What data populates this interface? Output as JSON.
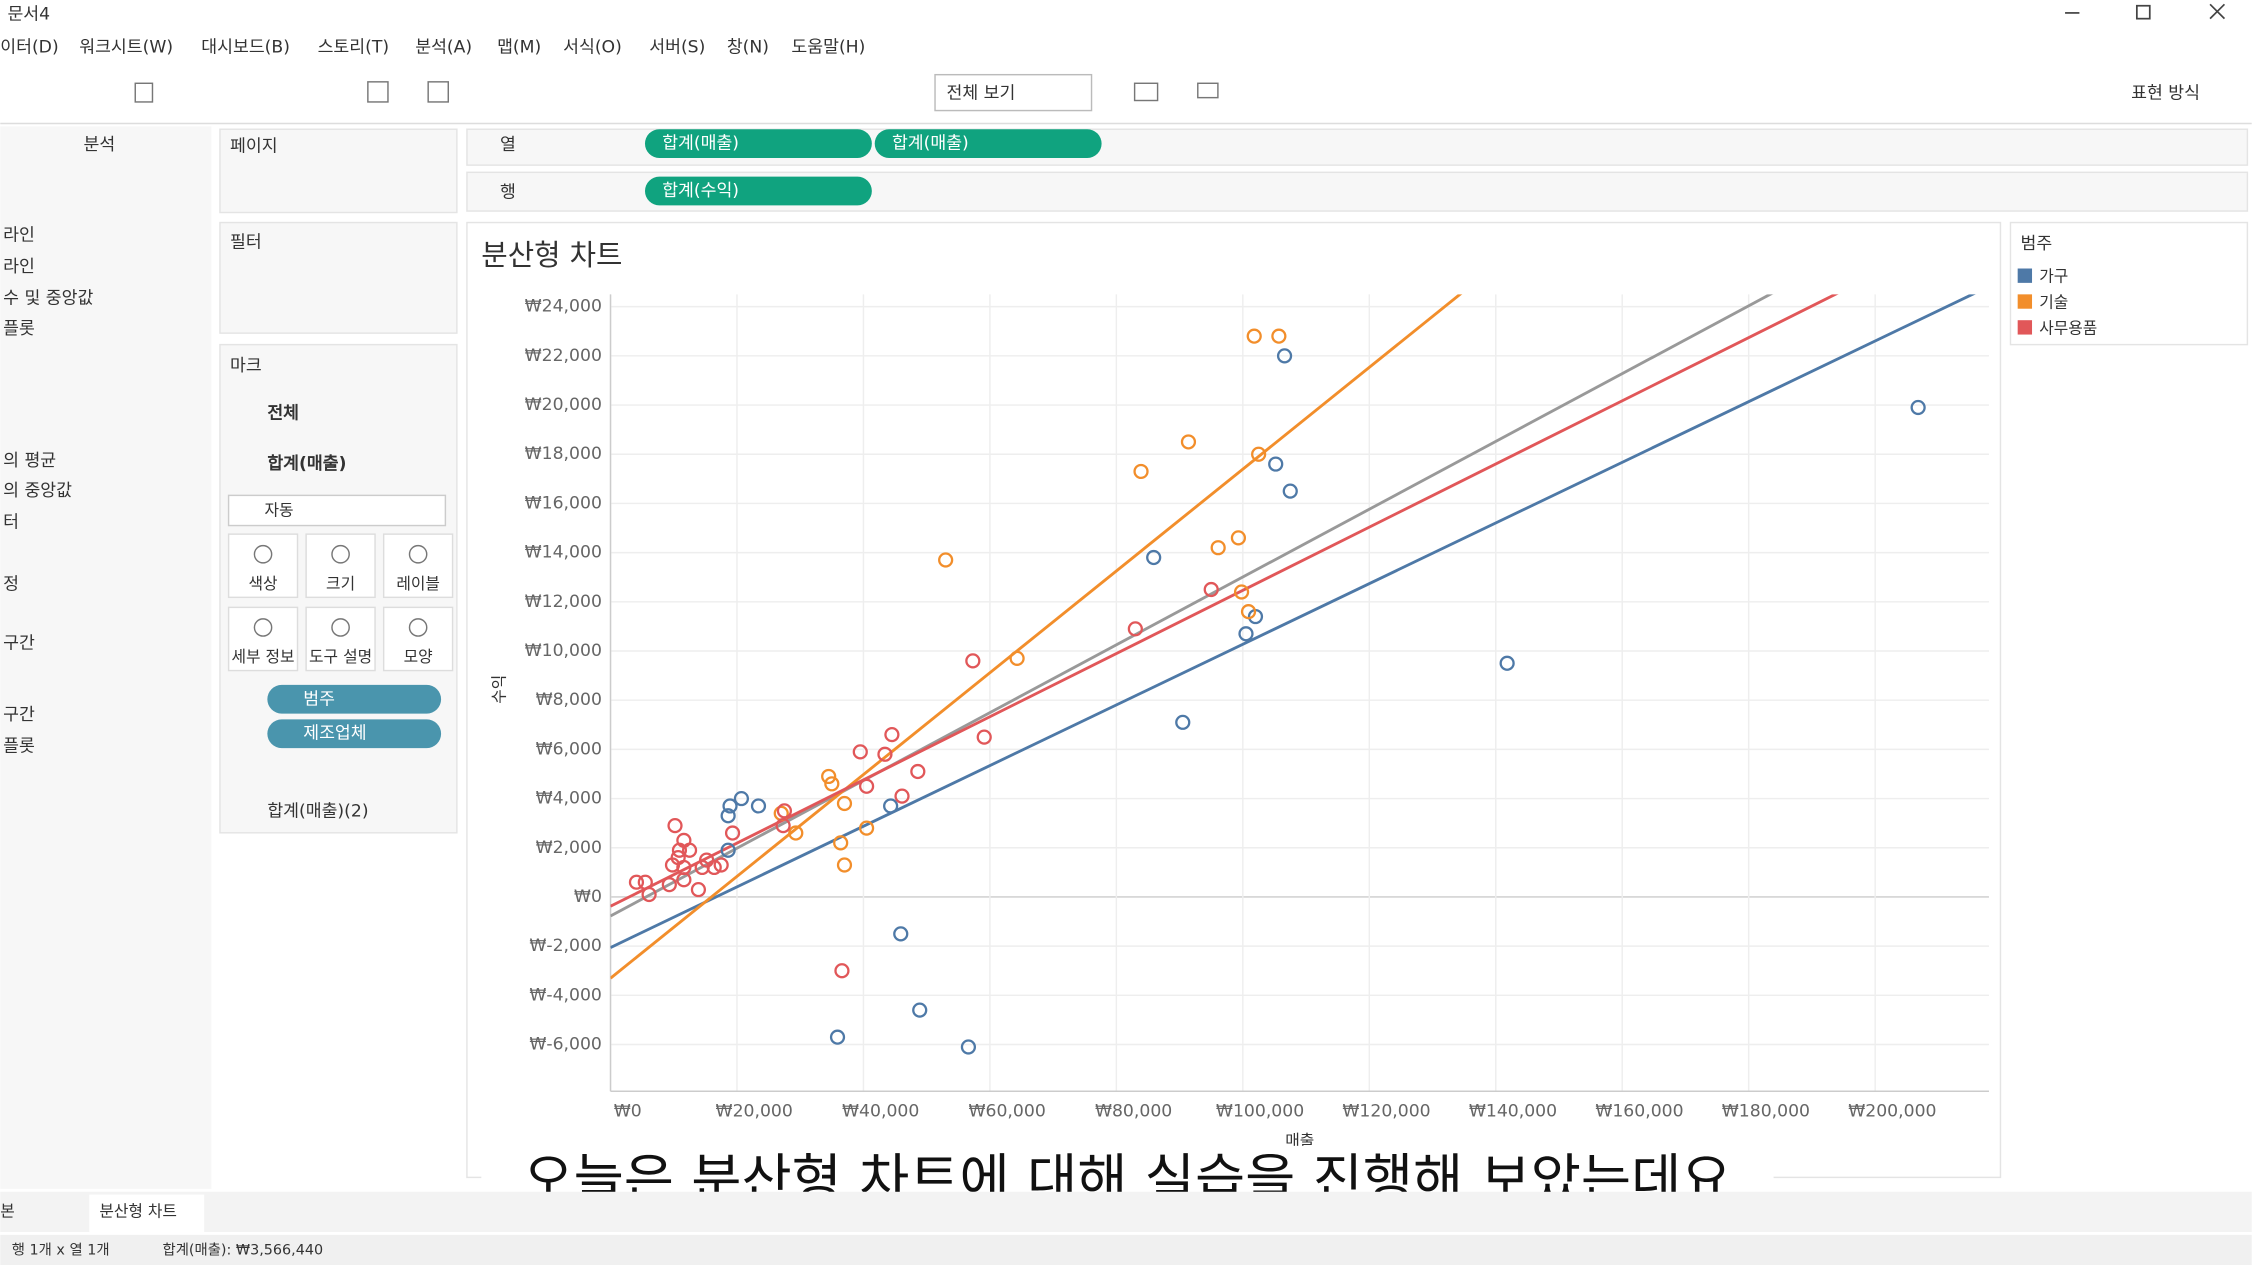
{
  "window": {
    "title": "문서4"
  },
  "menu": [
    "이터(D)",
    "워크시트(W)",
    "대시보드(B)",
    "스토리(T)",
    "분석(A)",
    "맵(M)",
    "서식(O)",
    "서버(S)",
    "창(N)",
    "도움말(H)"
  ],
  "toolbar": {
    "view": "전체 보기",
    "show_me": "표현 방식"
  },
  "analytics": {
    "tab": "분석",
    "items": [
      "라인",
      "라인",
      "수 및 중앙값",
      "플롯",
      "의 평균",
      "의 중앙값",
      "터",
      "정",
      "구간",
      "구간",
      "플롯"
    ]
  },
  "pages": "페이지",
  "filters": "필터",
  "marks": {
    "title": "마크",
    "all": "전체",
    "sheet1": "합계(매출)",
    "mark_type": "자동",
    "buttons": [
      "색상",
      "크기",
      "레이블",
      "세부 정보",
      "도구 설명",
      "모양"
    ],
    "pills": [
      "범주",
      "제조업체"
    ],
    "sheet2": "합계(매출)(2)"
  },
  "shelves": {
    "columns": {
      "label": "열",
      "pills": [
        "합계(매출)",
        "합계(매출)"
      ]
    },
    "rows": {
      "label": "행",
      "pills": [
        "합계(수익)"
      ]
    }
  },
  "chart_data": {
    "type": "scatter",
    "title": "분산형 차트",
    "x_label": "매출",
    "y_label": "수익",
    "legend_title": "범주",
    "trend_lines": true,
    "grid": true,
    "xlim": [
      0,
      218000
    ],
    "ylim": [
      -7900,
      24500
    ],
    "xticks": [
      {
        "value": 0,
        "label": "₩0"
      },
      {
        "value": 20000,
        "label": "₩20,000"
      },
      {
        "value": 40000,
        "label": "₩40,000"
      },
      {
        "value": 60000,
        "label": "₩60,000"
      },
      {
        "value": 80000,
        "label": "₩80,000"
      },
      {
        "value": 100000,
        "label": "₩100,000"
      },
      {
        "value": 120000,
        "label": "₩120,000"
      },
      {
        "value": 140000,
        "label": "₩140,000"
      },
      {
        "value": 160000,
        "label": "₩160,000"
      },
      {
        "value": 180000,
        "label": "₩180,000"
      },
      {
        "value": 200000,
        "label": "₩200,000"
      }
    ],
    "yticks": [
      {
        "value": -6000,
        "label": "₩-6,000"
      },
      {
        "value": -4000,
        "label": "₩-4,000"
      },
      {
        "value": -2000,
        "label": "₩-2,000"
      },
      {
        "value": 0,
        "label": "₩0"
      },
      {
        "value": 2000,
        "label": "₩2,000"
      },
      {
        "value": 4000,
        "label": "₩4,000"
      },
      {
        "value": 6000,
        "label": "₩6,000"
      },
      {
        "value": 8000,
        "label": "₩8,000"
      },
      {
        "value": 10000,
        "label": "₩10,000"
      },
      {
        "value": 12000,
        "label": "₩12,000"
      },
      {
        "value": 14000,
        "label": "₩14,000"
      },
      {
        "value": 16000,
        "label": "₩16,000"
      },
      {
        "value": 18000,
        "label": "₩18,000"
      },
      {
        "value": 20000,
        "label": "₩20,000"
      },
      {
        "value": 22000,
        "label": "₩22,000"
      },
      {
        "value": 24000,
        "label": "₩24,000"
      }
    ],
    "series": [
      {
        "name": "가구",
        "color": "#4e79a7",
        "x": [
          106600,
          105200,
          107500,
          85900,
          100500,
          102000,
          90500,
          141800,
          206800,
          45900,
          48900,
          35900,
          56600,
          20700,
          18900,
          23400,
          18600,
          18600,
          44300
        ],
        "y": [
          22000,
          17600,
          16500,
          13800,
          10700,
          11400,
          7100,
          9500,
          19900,
          -1500,
          -4600,
          -5700,
          -6100,
          4000,
          3700,
          3700,
          3300,
          1900,
          3700
        ]
      },
      {
        "name": "기술",
        "color": "#f28e2b",
        "x": [
          101800,
          105700,
          91400,
          102500,
          83900,
          53000,
          96100,
          99300,
          99800,
          100900,
          64300,
          34500,
          35000,
          37000,
          27000,
          29300,
          36400,
          37000,
          40500
        ],
        "y": [
          22800,
          22800,
          18500,
          18000,
          17300,
          13700,
          14200,
          14600,
          12400,
          11600,
          9700,
          4900,
          4600,
          3800,
          3400,
          2600,
          2200,
          1300,
          2800
        ]
      },
      {
        "name": "사무용품",
        "color": "#e15759",
        "x": [
          83000,
          95000,
          57300,
          59100,
          44500,
          39500,
          43400,
          48600,
          46100,
          40500,
          36600,
          10200,
          11600,
          10900,
          10700,
          12500,
          15200,
          17500,
          14500,
          13900,
          19300,
          27300,
          4100,
          5500,
          9300,
          11600,
          6100,
          16400,
          9800,
          27500,
          11600
        ],
        "y": [
          10900,
          12500,
          9600,
          6500,
          6600,
          5900,
          5800,
          5100,
          4100,
          4500,
          -3000,
          2900,
          2300,
          1900,
          1600,
          1900,
          1500,
          1300,
          1200,
          300,
          2600,
          2900,
          600,
          600,
          500,
          700,
          100,
          1200,
          1300,
          3500,
          1200
        ]
      }
    ]
  },
  "caption": "오늘은 분산형 차트에 대해 실습을 진행해 보았는데요",
  "tabs": [
    "본",
    "분산형 차트"
  ],
  "status": [
    "행 1개 x 열 1개",
    "합계(매출): ₩3,566,440"
  ]
}
